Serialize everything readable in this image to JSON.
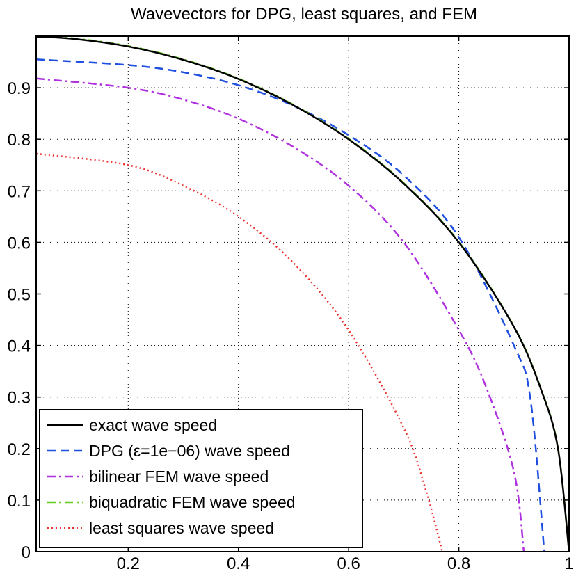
{
  "chart_data": {
    "type": "line",
    "title": "Wavevectors for DPG, least squares, and FEM",
    "xlabel": "",
    "ylabel": "",
    "xlim": [
      0.033,
      1.0
    ],
    "ylim": [
      0,
      1.0
    ],
    "grid": true,
    "legend_position": "bottom-left",
    "x_ticks": [
      0.2,
      0.4,
      0.6,
      0.8,
      1.0
    ],
    "x_tick_labels": [
      "0.2",
      "0.4",
      "0.6",
      "0.8",
      "1"
    ],
    "y_ticks": [
      0,
      0.1,
      0.2,
      0.3,
      0.4,
      0.5,
      0.6,
      0.7,
      0.8,
      0.9
    ],
    "y_tick_labels": [
      "0",
      "0.1",
      "0.2",
      "0.3",
      "0.4",
      "0.5",
      "0.6",
      "0.7",
      "0.8",
      "0.9"
    ],
    "series": [
      {
        "name": "exact wave speed",
        "color": "#000000",
        "style": "solid",
        "x": [
          0.033,
          0.1,
          0.2,
          0.3,
          0.4,
          0.5,
          0.6,
          0.7,
          0.8,
          0.9,
          0.95,
          0.98,
          1.0
        ],
        "y": [
          0.999,
          0.995,
          0.98,
          0.954,
          0.917,
          0.866,
          0.8,
          0.714,
          0.6,
          0.436,
          0.312,
          0.199,
          0.0
        ]
      },
      {
        "name": "DPG (ε=1e−06) wave speed",
        "color": "#1f4fe0",
        "style": "dashed",
        "x": [
          0.033,
          0.2,
          0.3,
          0.4,
          0.5,
          0.6,
          0.7,
          0.8,
          0.9,
          0.93,
          0.955
        ],
        "y": [
          0.955,
          0.944,
          0.93,
          0.905,
          0.865,
          0.808,
          0.73,
          0.61,
          0.4,
          0.295,
          0.0
        ]
      },
      {
        "name": "bilinear FEM wave speed",
        "color": "#b030e0",
        "style": "dashdot",
        "x": [
          0.033,
          0.2,
          0.3,
          0.4,
          0.5,
          0.6,
          0.7,
          0.8,
          0.85,
          0.9,
          0.918
        ],
        "y": [
          0.918,
          0.9,
          0.877,
          0.84,
          0.785,
          0.71,
          0.6,
          0.43,
          0.318,
          0.155,
          0.0
        ]
      },
      {
        "name": "biquadratic FEM wave speed",
        "color": "#66cc22",
        "style": "dashdot",
        "x": [
          0.033,
          0.1,
          0.2,
          0.3,
          0.4,
          0.5,
          0.6,
          0.7,
          0.8,
          0.9,
          0.95,
          0.98,
          1.0
        ],
        "y": [
          1.0,
          0.996,
          0.981,
          0.955,
          0.918,
          0.867,
          0.801,
          0.715,
          0.601,
          0.437,
          0.313,
          0.2,
          0.0
        ]
      },
      {
        "name": "least squares wave speed",
        "color": "#ee3333",
        "style": "dotted",
        "x": [
          0.033,
          0.2,
          0.3,
          0.4,
          0.5,
          0.6,
          0.7,
          0.74,
          0.77
        ],
        "y": [
          0.772,
          0.75,
          0.71,
          0.65,
          0.56,
          0.43,
          0.24,
          0.12,
          0.0
        ]
      }
    ]
  }
}
